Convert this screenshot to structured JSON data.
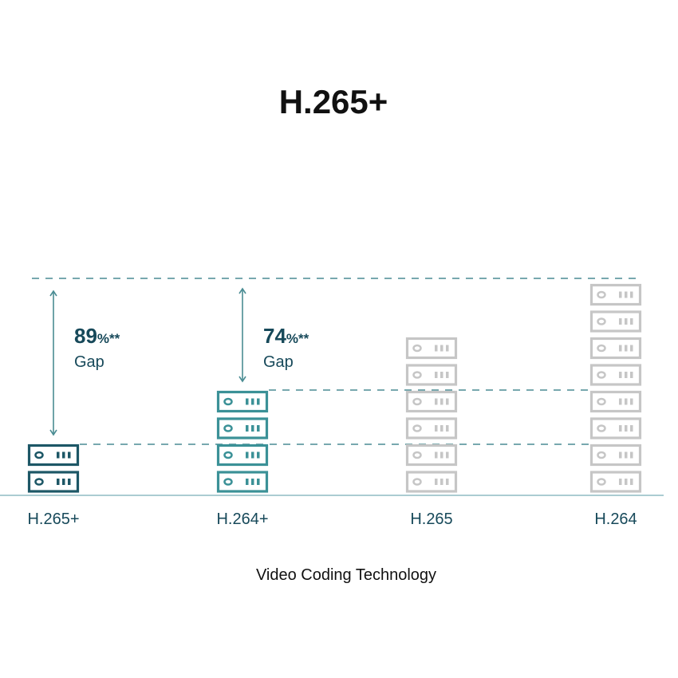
{
  "chart_data": {
    "type": "bar",
    "title": "H.265+",
    "xlabel": "Video Coding Technology",
    "ylabel": "",
    "categories": [
      "H.265+",
      "H.264+",
      "H.265",
      "H.264"
    ],
    "values": [
      2,
      4,
      6,
      8
    ],
    "unit_icon": "server-icon",
    "colors": [
      "#1d5766",
      "#3b9197",
      "#c6c6c6",
      "#c6c6c6"
    ],
    "annotations": [
      {
        "category": "H.265+",
        "value": "89",
        "unit": "%**",
        "label": "Gap"
      },
      {
        "category": "H.264+",
        "value": "74",
        "unit": "%**",
        "label": "Gap"
      }
    ],
    "guide_color": "#4a8c93",
    "axis_color": "#8fbcc4"
  }
}
